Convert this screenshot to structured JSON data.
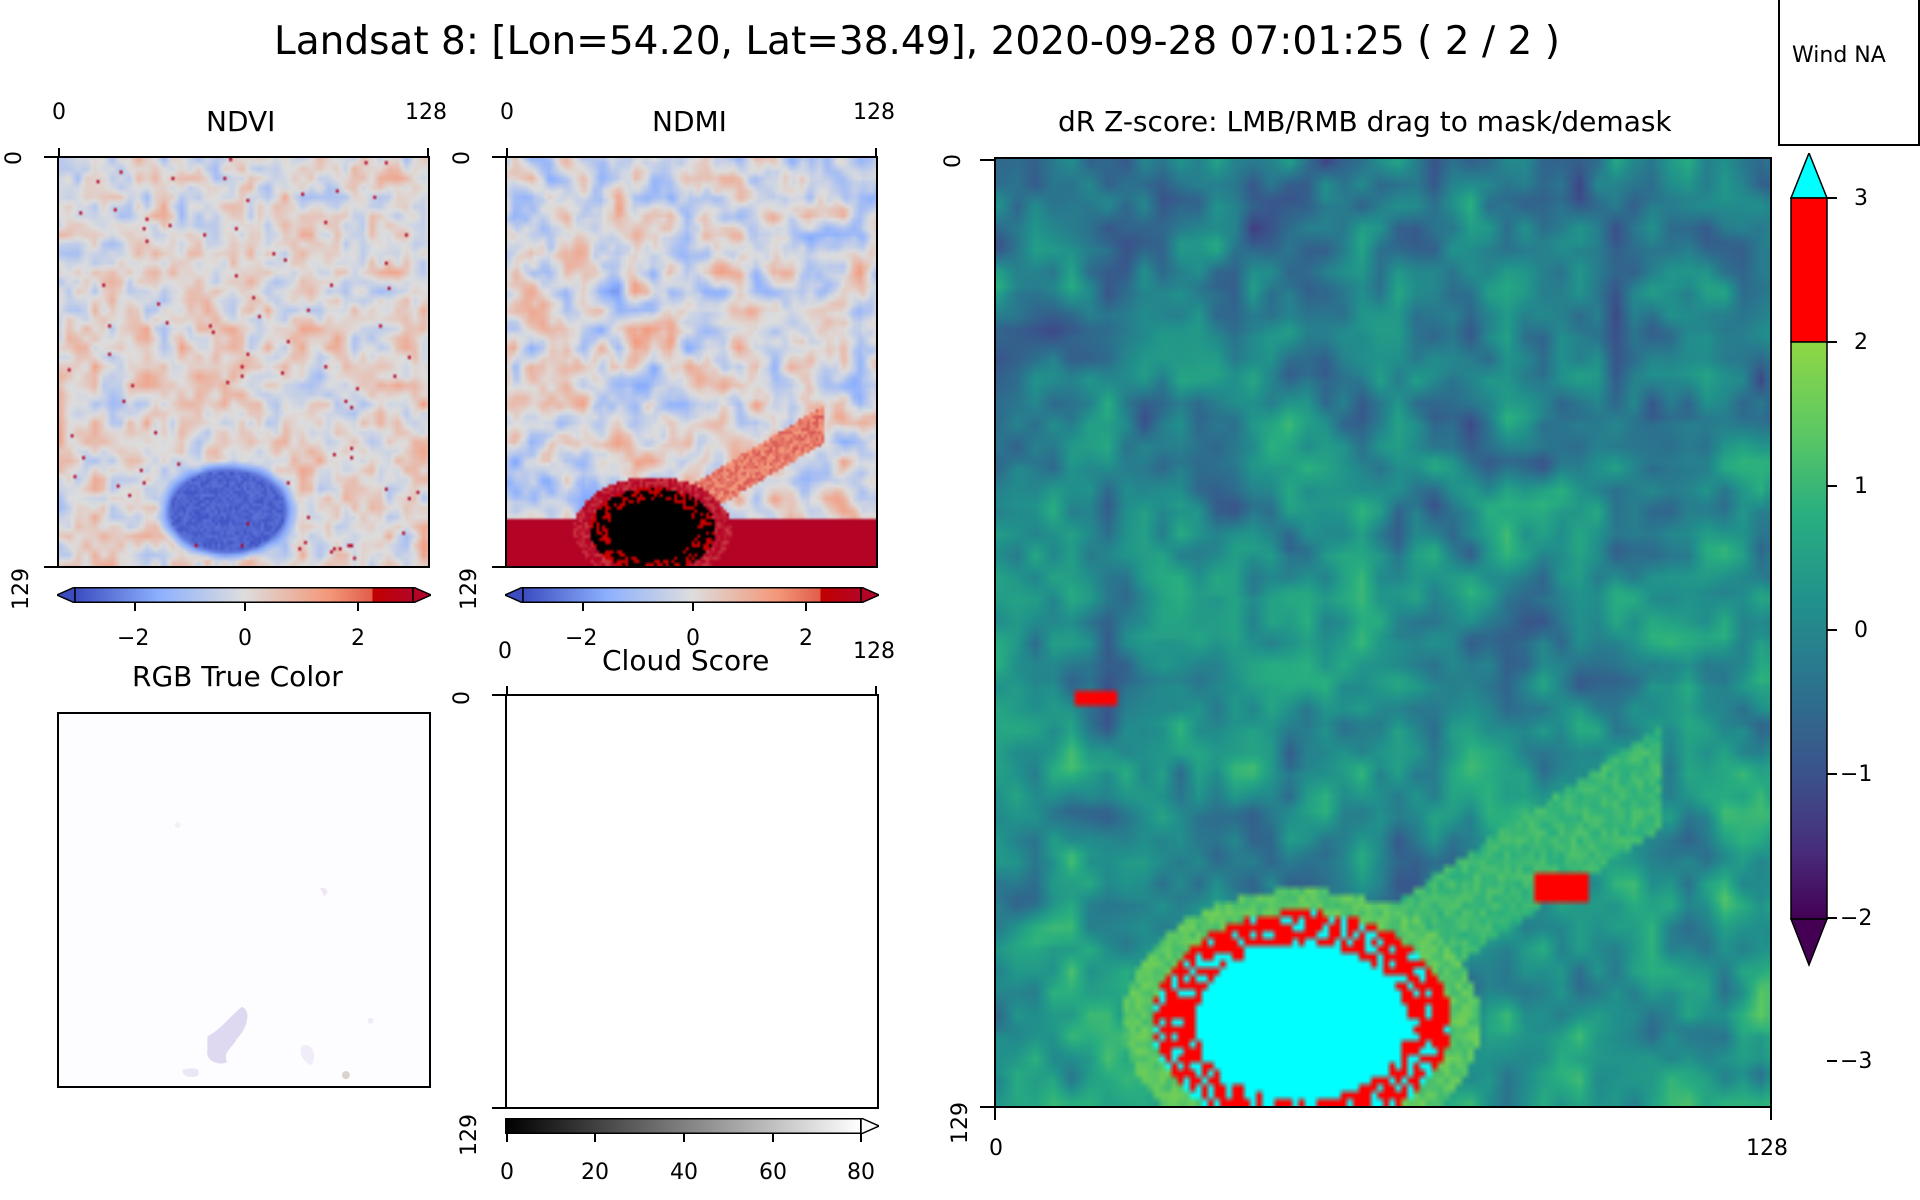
{
  "figure": {
    "title": "Landsat 8: [Lon=54.20, Lat=38.49], 2020-09-28 07:01:25 ( 2 / 2 )",
    "wind_label": "Wind NA"
  },
  "panels": {
    "ndvi": {
      "title": "NDVI",
      "x_ticks": [
        "0",
        "128"
      ],
      "y_ticks": [
        "0",
        "129"
      ],
      "colorbar": {
        "cmap": "coolwarm",
        "ticks": [
          "−2",
          "0",
          "2"
        ],
        "extend": "both"
      }
    },
    "ndmi": {
      "title": "NDMI",
      "x_ticks": [
        "0",
        "128"
      ],
      "y_ticks": [
        "0",
        "129"
      ],
      "colorbar": {
        "cmap": "coolwarm",
        "ticks": [
          "−2",
          "0",
          "2"
        ],
        "extend": "both"
      }
    },
    "rgb": {
      "title": "RGB True Color"
    },
    "cloud": {
      "title": "Cloud Score",
      "x_ticks": [
        "0",
        "128"
      ],
      "y_ticks": [
        "0",
        "129"
      ],
      "colorbar": {
        "cmap": "gray",
        "ticks": [
          "0",
          "20",
          "40",
          "60",
          "80"
        ],
        "extend": "max"
      }
    },
    "zscore": {
      "title": "dR Z-score: LMB/RMB drag to mask/demask",
      "x_ticks": [
        "0",
        "128"
      ],
      "y_ticks": [
        "0",
        "129"
      ],
      "colorbar": {
        "ticks": [
          "3",
          "2",
          "1",
          "0",
          "−1",
          "−2",
          "−3"
        ],
        "vmin": -3,
        "vmax": 3,
        "highlight_above": 2,
        "highlight_color": "#ff0000",
        "over_color": "#00ffff",
        "under_color": "#440154"
      }
    }
  },
  "colors": {
    "highlight": "#ff0000",
    "masked": "#00ffff",
    "ndmi_extreme": "#000000",
    "ndvi_negative_blob": "#3b4cc0"
  }
}
